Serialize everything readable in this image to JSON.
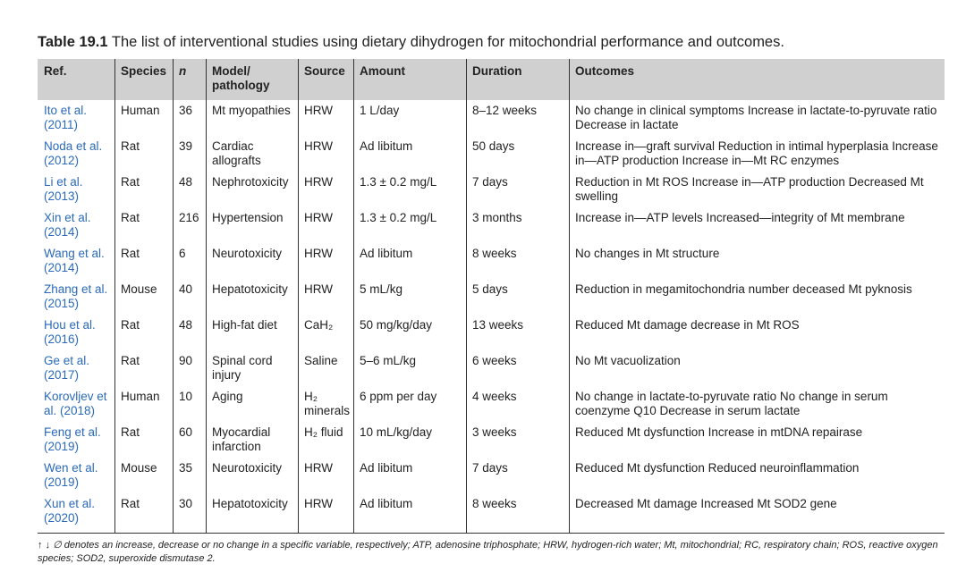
{
  "header": {
    "label": "Table 19.1",
    "title": "The list of interventional studies using dietary dihydrogen for mitochondrial performance and outcomes."
  },
  "table": {
    "columns": [
      "Ref.",
      "Species",
      "n",
      "Model/ pathology",
      "Source",
      "Amount",
      "Duration",
      "Outcomes"
    ],
    "rows": [
      [
        "Ito et al. (2011)",
        "Human",
        36,
        "Mt myopathies",
        "HRW",
        "1 L/day",
        "8–12 weeks",
        "No change in clinical symptoms Increase in lactate-to-pyruvate ratio Decrease in lactate"
      ],
      [
        "Noda et al. (2012)",
        "Rat",
        39,
        "Cardiac allografts",
        "HRW",
        "Ad libitum",
        "50 days",
        "Increase in—graft survival Reduction in intimal hyperplasia Increase in—ATP production Increase in—Mt RC enzymes"
      ],
      [
        "Li et al. (2013)",
        "Rat",
        48,
        "Nephrotoxicity",
        "HRW",
        "1.3 ± 0.2 mg/L",
        "7 days",
        "Reduction in Mt ROS Increase in—ATP production Decreased Mt swelling"
      ],
      [
        "Xin et al. (2014)",
        "Rat",
        216,
        "Hypertension",
        "HRW",
        "1.3 ± 0.2 mg/L",
        "3 months",
        "Increase in—ATP levels Increased—integrity of Mt membrane"
      ],
      [
        "Wang et al. (2014)",
        "Rat",
        6,
        "Neurotoxicity",
        "HRW",
        "Ad libitum",
        "8 weeks",
        "No changes in Mt structure"
      ],
      [
        "Zhang et al. (2015)",
        "Mouse",
        40,
        "Hepatotoxicity",
        "HRW",
        "5 mL/kg",
        "5 days",
        "Reduction in megamitochondria number deceased Mt pyknosis"
      ],
      [
        "Hou et al. (2016)",
        "Rat",
        48,
        "High-fat diet",
        "CaH₂",
        "50 mg/kg/day",
        "13 weeks",
        "Reduced Mt damage decrease in Mt ROS"
      ],
      [
        "Ge et al. (2017)",
        "Rat",
        90,
        "Spinal cord injury",
        "Saline",
        "5–6 mL/kg",
        "6 weeks",
        "No Mt vacuolization"
      ],
      [
        "Korovljev et al. (2018)",
        "Human",
        10,
        "Aging",
        "H₂ minerals",
        "6 ppm per day",
        "4 weeks",
        "No change in lactate-to-pyruvate ratio No change in serum coenzyme Q10 Decrease in serum lactate"
      ],
      [
        "Feng et al. (2019)",
        "Rat",
        60,
        "Myocardial infarction",
        "H₂ fluid",
        "10 mL/kg/day",
        "3 weeks",
        "Reduced Mt dysfunction Increase in mtDNA repairase"
      ],
      [
        "Wen et al. (2019)",
        "Mouse",
        35,
        "Neurotoxicity",
        "HRW",
        "Ad libitum",
        "7 days",
        "Reduced Mt dysfunction Reduced neuroinflammation"
      ],
      [
        "Xun et al. (2020)",
        "Rat",
        30,
        "Hepatotoxicity",
        "HRW",
        "Ad libitum",
        "8 weeks",
        "Decreased Mt damage Increased Mt SOD2 gene"
      ]
    ]
  },
  "footnote": "↑ ↓ ∅ denotes an increase, decrease or no change in a specific variable, respectively; ATP, adenosine triphosphate; HRW, hydrogen-rich water; Mt, mitochondrial; RC, respiratory chain; ROS, reactive oxygen species; SOD2, superoxide dismutase 2."
}
